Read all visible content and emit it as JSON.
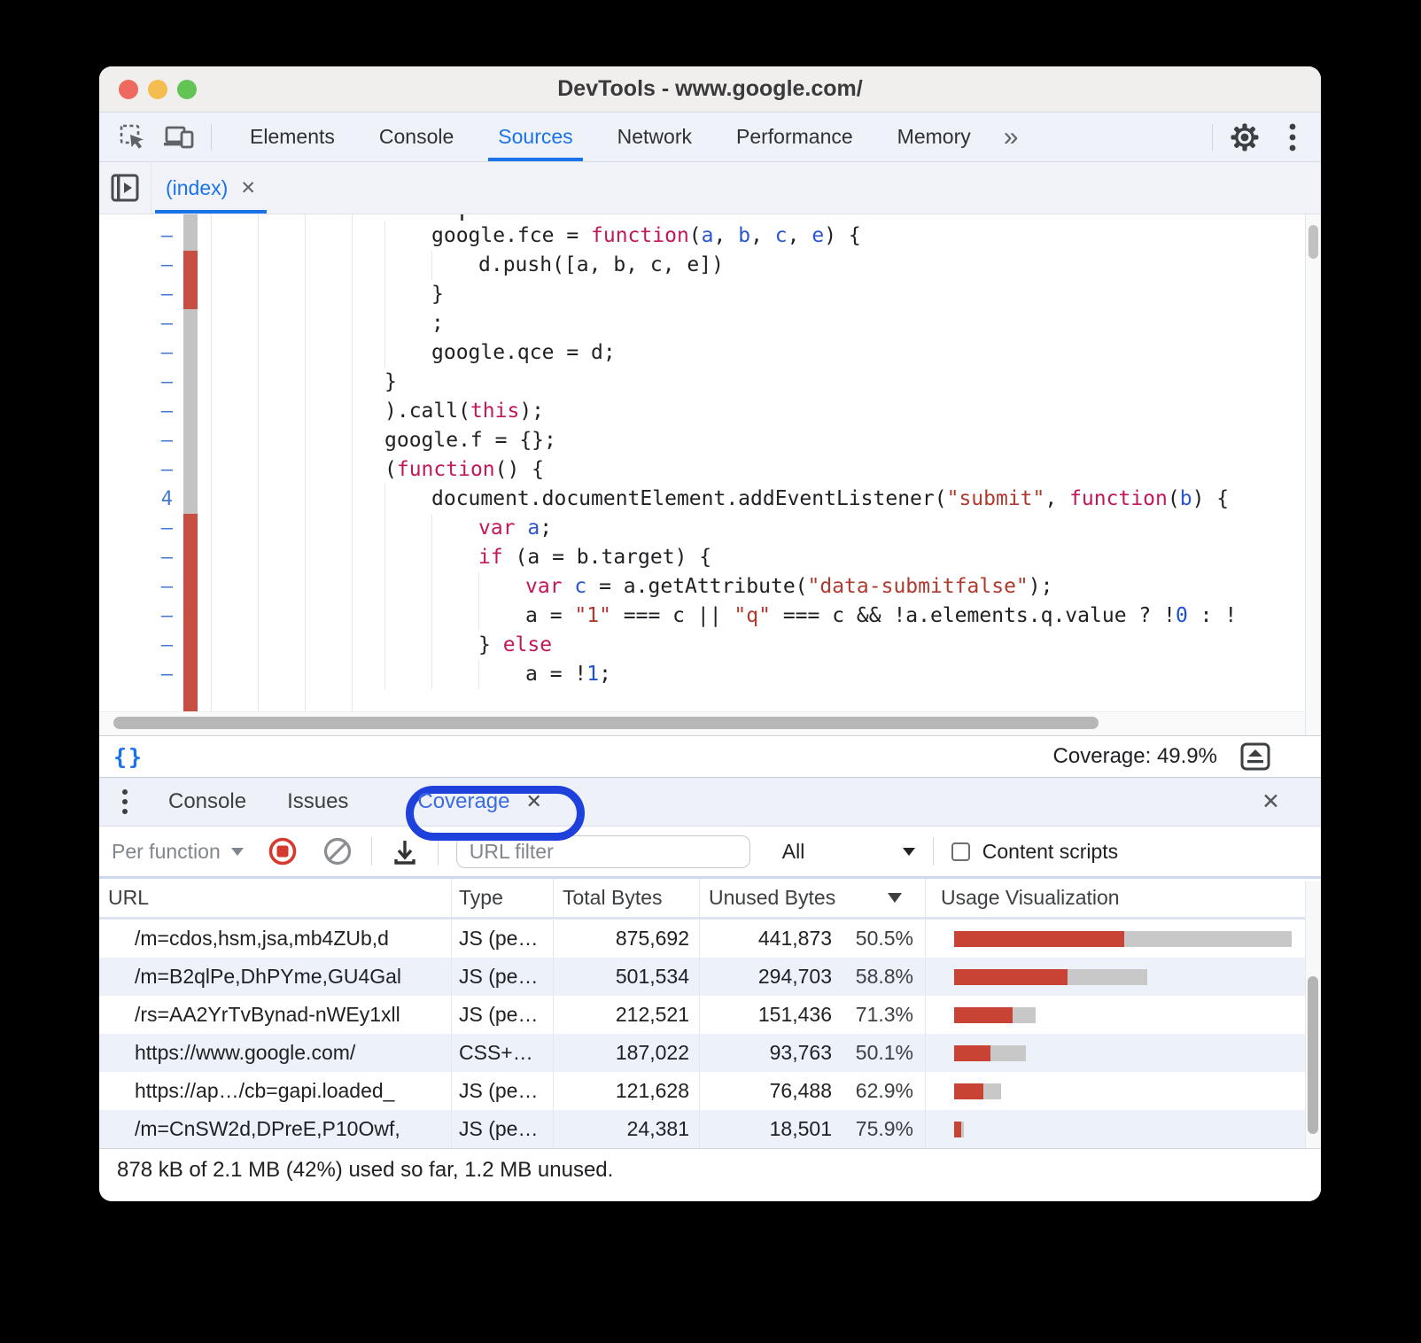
{
  "window": {
    "title": "DevTools - www.google.com/"
  },
  "colors": {
    "accent_blue": "#1a73e8",
    "coverage_red": "#c94334",
    "coverage_gray": "#c8c8c8",
    "gutter_red": "#c74e41",
    "gutter_gray": "#c3c3c3",
    "annotation_blue": "#1e41dc"
  },
  "toolbar": {
    "tabs": [
      "Elements",
      "Console",
      "Sources",
      "Network",
      "Performance",
      "Memory"
    ],
    "selected": "Sources",
    "overflow_label": "»"
  },
  "sources": {
    "file_tab": "(index)",
    "close_label": "✕"
  },
  "editor": {
    "lines": [
      {
        "num": "–",
        "cov": "gray",
        "indent": 1,
        "tokens": [
          [
            "t",
            "google.fce = "
          ],
          [
            "k",
            "function"
          ],
          [
            "t",
            "("
          ],
          [
            "v",
            "a"
          ],
          [
            "t",
            ", "
          ],
          [
            "v",
            "b"
          ],
          [
            "t",
            ", "
          ],
          [
            "v",
            "c"
          ],
          [
            "t",
            ", "
          ],
          [
            "v",
            "e"
          ],
          [
            "t",
            ") {"
          ]
        ]
      },
      {
        "num": "–",
        "cov": "red",
        "indent": 2,
        "tokens": [
          [
            "t",
            "d.push([a, b, c, e])"
          ]
        ]
      },
      {
        "num": "–",
        "cov": "red",
        "indent": 1,
        "tokens": [
          [
            "t",
            "}"
          ]
        ]
      },
      {
        "num": "–",
        "cov": "gray",
        "indent": 1,
        "tokens": [
          [
            "t",
            ";"
          ]
        ]
      },
      {
        "num": "–",
        "cov": "gray",
        "indent": 1,
        "tokens": [
          [
            "t",
            "google.qce = d;"
          ]
        ]
      },
      {
        "num": "–",
        "cov": "gray",
        "indent": 0,
        "tokens": [
          [
            "t",
            "}"
          ]
        ]
      },
      {
        "num": "–",
        "cov": "gray",
        "indent": 0,
        "tokens": [
          [
            "t",
            ").call("
          ],
          [
            "k",
            "this"
          ],
          [
            "t",
            ");"
          ]
        ]
      },
      {
        "num": "–",
        "cov": "gray",
        "indent": 0,
        "tokens": [
          [
            "t",
            "google.f = {};"
          ]
        ]
      },
      {
        "num": "–",
        "cov": "gray",
        "indent": 0,
        "tokens": [
          [
            "t",
            "("
          ],
          [
            "k",
            "function"
          ],
          [
            "t",
            "() {"
          ]
        ]
      },
      {
        "num": "4",
        "cov": "gray",
        "indent": 1,
        "tokens": [
          [
            "t",
            "document.documentElement.addEventListener("
          ],
          [
            "s",
            "\"submit\""
          ],
          [
            "t",
            ", "
          ],
          [
            "k",
            "function"
          ],
          [
            "t",
            "("
          ],
          [
            "v",
            "b"
          ],
          [
            "t",
            ") {"
          ]
        ]
      },
      {
        "num": "–",
        "cov": "red",
        "indent": 2,
        "tokens": [
          [
            "k",
            "var"
          ],
          [
            "t",
            " "
          ],
          [
            "v",
            "a"
          ],
          [
            "t",
            ";"
          ]
        ]
      },
      {
        "num": "–",
        "cov": "red",
        "indent": 2,
        "tokens": [
          [
            "k",
            "if"
          ],
          [
            "t",
            " (a = b.target) {"
          ]
        ]
      },
      {
        "num": "–",
        "cov": "red",
        "indent": 3,
        "tokens": [
          [
            "k",
            "var"
          ],
          [
            "t",
            " "
          ],
          [
            "v",
            "c"
          ],
          [
            "t",
            " = a.getAttribute("
          ],
          [
            "s",
            "\"data-submitfalse\""
          ],
          [
            "t",
            ");"
          ]
        ]
      },
      {
        "num": "–",
        "cov": "red",
        "indent": 3,
        "tokens": [
          [
            "t",
            "a = "
          ],
          [
            "s",
            "\"1\""
          ],
          [
            "t",
            " === c || "
          ],
          [
            "s",
            "\"q\""
          ],
          [
            "t",
            " === c && !a.elements.q.value ? !"
          ],
          [
            "n",
            "0"
          ],
          [
            "t",
            " : !"
          ]
        ]
      },
      {
        "num": "–",
        "cov": "red",
        "indent": 2,
        "tokens": [
          [
            "t",
            "} "
          ],
          [
            "k",
            "else"
          ]
        ]
      },
      {
        "num": "–",
        "cov": "red",
        "indent": 3,
        "tokens": [
          [
            "t",
            "a = !"
          ],
          [
            "n",
            "1"
          ],
          [
            "t",
            ";"
          ]
        ]
      }
    ]
  },
  "statusbar": {
    "format_icon_label": "{}",
    "coverage_summary": "Coverage: 49.9%"
  },
  "drawer": {
    "tabs": [
      "Console",
      "Issues",
      "Coverage"
    ],
    "selected": "Coverage",
    "close_tab_label": "✕",
    "close_drawer_label": "✕"
  },
  "coverage_toolbar": {
    "mode": "Per function",
    "url_filter_placeholder": "URL filter",
    "url_filter_value": "",
    "type_filter": "All",
    "content_scripts_label": "Content scripts",
    "content_scripts_checked": false
  },
  "table": {
    "columns": [
      "URL",
      "Type",
      "Total Bytes",
      "Unused Bytes",
      "Usage Visualization"
    ],
    "sorted_by": "Unused Bytes",
    "rows": [
      {
        "url": "/m=cdos,hsm,jsa,mb4ZUb,d",
        "type": "JS (pe…",
        "total": "875,692",
        "total_bytes": 875692,
        "unused": "441,873",
        "unused_bytes": 441873,
        "percent": "50.5%"
      },
      {
        "url": "/m=B2qlPe,DhPYme,GU4Gal",
        "type": "JS (pe…",
        "total": "501,534",
        "total_bytes": 501534,
        "unused": "294,703",
        "unused_bytes": 294703,
        "percent": "58.8%"
      },
      {
        "url": "/rs=AA2YrTvBynad-nWEy1xll",
        "type": "JS (pe…",
        "total": "212,521",
        "total_bytes": 212521,
        "unused": "151,436",
        "unused_bytes": 151436,
        "percent": "71.3%"
      },
      {
        "url": "https://www.google.com/",
        "type": "CSS+…",
        "total": "187,022",
        "total_bytes": 187022,
        "unused": "93,763",
        "unused_bytes": 93763,
        "percent": "50.1%"
      },
      {
        "url": "https://ap…/cb=gapi.loaded_",
        "type": "JS (pe…",
        "total": "121,628",
        "total_bytes": 121628,
        "unused": "76,488",
        "unused_bytes": 76488,
        "percent": "62.9%"
      },
      {
        "url": "/m=CnSW2d,DPreE,P10Owf,",
        "type": "JS (pe…",
        "total": "24,381",
        "total_bytes": 24381,
        "unused": "18,501",
        "unused_bytes": 18501,
        "percent": "75.9%"
      }
    ]
  },
  "footer": {
    "summary": "878 kB of 2.1 MB (42%) used so far, 1.2 MB unused."
  }
}
